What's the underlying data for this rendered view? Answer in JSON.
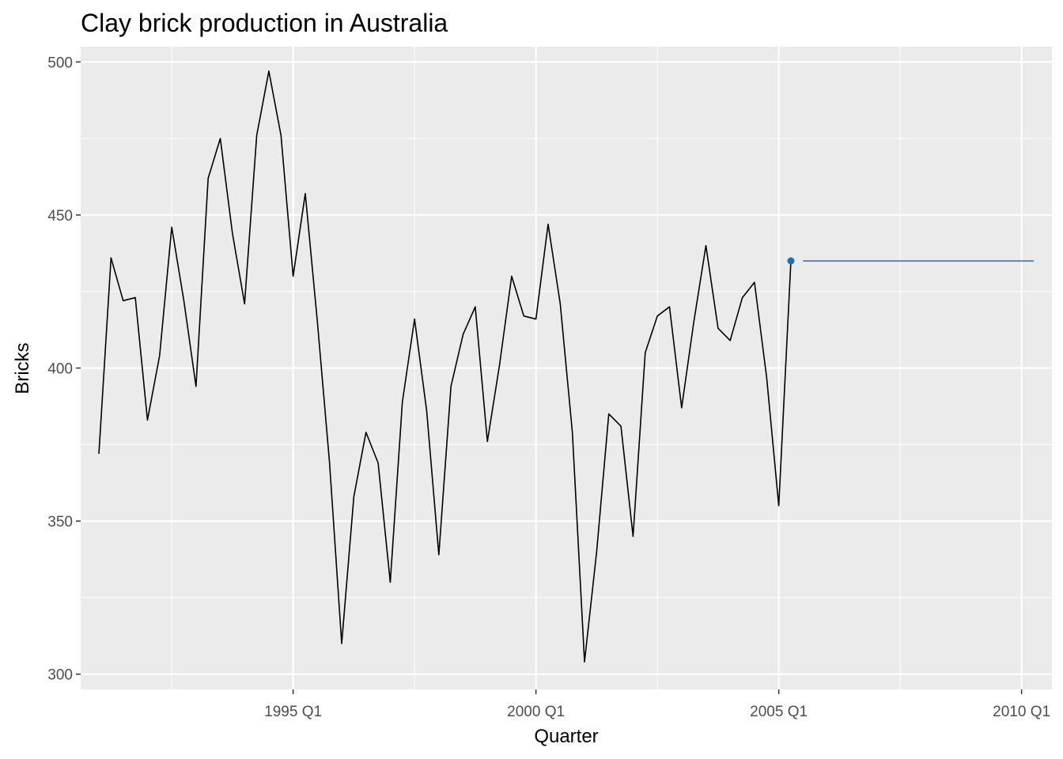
{
  "chart_data": {
    "type": "line",
    "title": "Clay brick production in Australia",
    "xlabel": "Quarter",
    "ylabel": "Bricks",
    "xlim": [
      1990.625,
      2010.625
    ],
    "ylim": [
      295,
      505
    ],
    "x_ticks": [
      {
        "value": 1995.0,
        "label": "1995 Q1"
      },
      {
        "value": 2000.0,
        "label": "2000 Q1"
      },
      {
        "value": 2005.0,
        "label": "2005 Q1"
      },
      {
        "value": 2010.0,
        "label": "2010 Q1"
      }
    ],
    "y_ticks": [
      300,
      350,
      400,
      450,
      500
    ],
    "grid": true,
    "series": [
      {
        "color": "#000000",
        "points": [
          [
            1991.0,
            372
          ],
          [
            1991.25,
            436
          ],
          [
            1991.5,
            422
          ],
          [
            1991.75,
            423
          ],
          [
            1992.0,
            383
          ],
          [
            1992.25,
            404
          ],
          [
            1992.5,
            446
          ],
          [
            1992.75,
            422
          ],
          [
            1993.0,
            394
          ],
          [
            1993.25,
            462
          ],
          [
            1993.5,
            475
          ],
          [
            1993.75,
            444
          ],
          [
            1994.0,
            421
          ],
          [
            1994.25,
            476
          ],
          [
            1994.5,
            497
          ],
          [
            1994.75,
            476
          ],
          [
            1995.0,
            430
          ],
          [
            1995.25,
            457
          ],
          [
            1995.5,
            415
          ],
          [
            1995.75,
            369
          ],
          [
            1996.0,
            310
          ],
          [
            1996.25,
            358
          ],
          [
            1996.5,
            379
          ],
          [
            1996.75,
            369
          ],
          [
            1997.0,
            330
          ],
          [
            1997.25,
            389
          ],
          [
            1997.5,
            416
          ],
          [
            1997.75,
            386
          ],
          [
            1998.0,
            339
          ],
          [
            1998.25,
            394
          ],
          [
            1998.5,
            411
          ],
          [
            1998.75,
            420
          ],
          [
            1999.0,
            376
          ],
          [
            1999.25,
            401
          ],
          [
            1999.5,
            430
          ],
          [
            1999.75,
            417
          ],
          [
            2000.0,
            416
          ],
          [
            2000.25,
            447
          ],
          [
            2000.5,
            421
          ],
          [
            2000.75,
            379
          ],
          [
            2001.0,
            304
          ],
          [
            2001.25,
            340
          ],
          [
            2001.5,
            385
          ],
          [
            2001.75,
            381
          ],
          [
            2002.0,
            345
          ],
          [
            2002.25,
            405
          ],
          [
            2002.5,
            417
          ],
          [
            2002.75,
            420
          ],
          [
            2003.0,
            387
          ],
          [
            2003.25,
            415
          ],
          [
            2003.5,
            440
          ],
          [
            2003.75,
            413
          ],
          [
            2004.0,
            409
          ],
          [
            2004.25,
            423
          ],
          [
            2004.5,
            428
          ],
          [
            2004.75,
            397
          ],
          [
            2005.0,
            355
          ],
          [
            2005.25,
            435
          ]
        ]
      },
      {
        "color": "#3366cc",
        "points": [
          [
            2005.5,
            435
          ],
          [
            2010.25,
            435
          ]
        ]
      }
    ],
    "highlight_point": {
      "x": 2005.25,
      "y": 435,
      "color": "#1f6fb5"
    }
  }
}
